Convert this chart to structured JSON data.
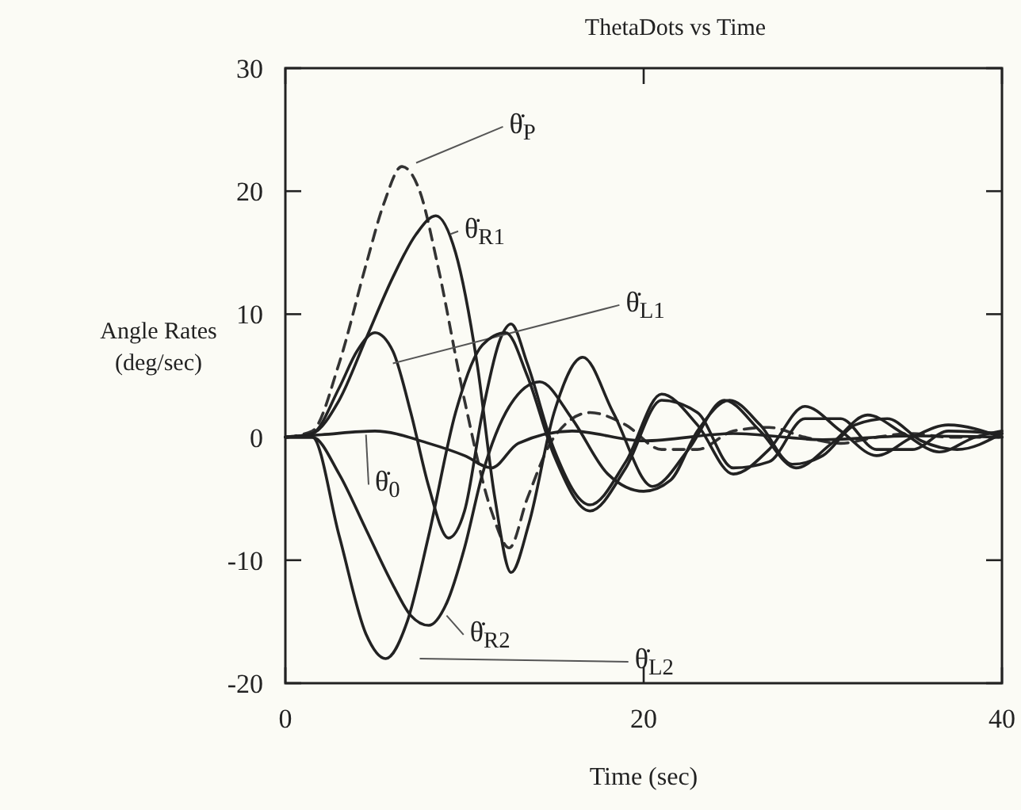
{
  "chart_data": {
    "type": "line",
    "title": "ThetaDots vs Time",
    "xlabel": "Time (sec)",
    "ylabel": "Angle Rates\n(deg/sec)",
    "xlim": [
      0,
      40
    ],
    "xticks": [
      0,
      20,
      40
    ],
    "ylim": [
      -20,
      30
    ],
    "yticks": [
      -20,
      -10,
      0,
      10,
      20,
      30
    ],
    "grid": false,
    "marker": "none",
    "series": [
      {
        "name": "θ̇$_{P}$",
        "color": "#333333",
        "line_style": "dashed",
        "x": [
          0,
          1.5,
          3,
          4.5,
          5.5,
          6.5,
          7.5,
          8.5,
          10,
          11.5,
          12.5,
          13.5,
          15,
          17,
          19,
          21,
          23,
          25,
          27,
          29,
          31,
          33,
          35,
          37,
          40
        ],
        "values": [
          0,
          0.5,
          6,
          14,
          19,
          22,
          20,
          14,
          3,
          -6,
          -9,
          -5,
          0,
          2,
          1,
          -1,
          -1,
          0.5,
          0.8,
          0,
          -0.5,
          0,
          0.3,
          0,
          0
        ]
      },
      {
        "name": "θ̇$_{R1}$",
        "color": "#222222",
        "line_style": "solid",
        "x": [
          0,
          1.5,
          3,
          4.5,
          6,
          7.3,
          8.4,
          9.5,
          10.7,
          11.7,
          12.6,
          13.6,
          15,
          16.6,
          18.3,
          20.5,
          22.5,
          24.5,
          26.5,
          28.5,
          30.5,
          32.5,
          34.5,
          36.5,
          38.5,
          40
        ],
        "values": [
          0,
          0.3,
          3,
          8,
          13,
          16.5,
          18,
          15,
          6,
          -5,
          -11,
          -7,
          2,
          6.5,
          2,
          -4,
          -1,
          3,
          0.5,
          -2.5,
          -0.5,
          1.8,
          0.3,
          -1.2,
          0,
          0.5
        ]
      },
      {
        "name": "θ̇$_{L1}$",
        "color": "#222222",
        "line_style": "solid",
        "x": [
          0,
          1.5,
          3,
          4,
          5,
          6,
          7,
          8,
          9.1,
          10,
          11,
          12,
          12.6,
          13.5,
          15,
          17,
          19,
          21,
          23,
          25,
          27,
          29,
          31,
          33,
          35,
          37,
          40
        ],
        "values": [
          0,
          0.3,
          4,
          7,
          8.5,
          7,
          2,
          -4,
          -8.2,
          -6,
          2,
          8,
          9.2,
          6,
          -1,
          -5.5,
          -2,
          3.5,
          1,
          -3,
          -1,
          2.5,
          0.5,
          -1.5,
          0,
          1,
          0
        ]
      },
      {
        "name": "θ̇$_{0}$",
        "color": "#222222",
        "line_style": "solid",
        "x": [
          0,
          2,
          5,
          8,
          10,
          11.5,
          13,
          16,
          20,
          25,
          30,
          35,
          40
        ],
        "values": [
          0,
          0.2,
          0.5,
          -0.5,
          -1.5,
          -2.5,
          -0.5,
          0.5,
          -0.3,
          0.3,
          -0.2,
          0.1,
          0
        ]
      },
      {
        "name": "θ̇$_{R2}$",
        "color": "#222222",
        "line_style": "solid",
        "x": [
          0,
          1.5,
          3,
          4.5,
          6,
          7,
          8,
          9,
          10,
          11,
          12.5,
          14.2,
          16,
          18,
          20,
          21.5,
          23,
          24.8,
          26.5,
          28.3,
          30,
          31.8,
          33.6,
          35.5,
          37.5,
          40
        ],
        "values": [
          0,
          0,
          -3,
          -7.5,
          -12,
          -14.5,
          -15.3,
          -13.5,
          -9,
          -3,
          2.5,
          4.5,
          1.5,
          -3,
          -4.4,
          -3.5,
          0.5,
          3,
          1,
          -2.2,
          -1.5,
          1,
          1.5,
          -0.3,
          -1,
          0.3
        ]
      },
      {
        "name": "θ̇$_{L2}$",
        "color": "#222222",
        "line_style": "solid",
        "x": [
          0,
          1.5,
          3,
          4.5,
          5.6,
          6.8,
          8,
          9.5,
          11,
          12.3,
          13.5,
          15,
          17,
          19,
          21,
          23,
          25,
          27,
          29,
          31,
          33,
          35,
          37,
          40
        ],
        "values": [
          0,
          0,
          -8,
          -16,
          -18,
          -15,
          -8,
          2,
          7.5,
          8.5,
          5,
          -1.5,
          -6,
          -2.5,
          3,
          2,
          -2.5,
          -2,
          1.5,
          1.5,
          -1,
          -1,
          0.5,
          0.3
        ]
      }
    ]
  }
}
